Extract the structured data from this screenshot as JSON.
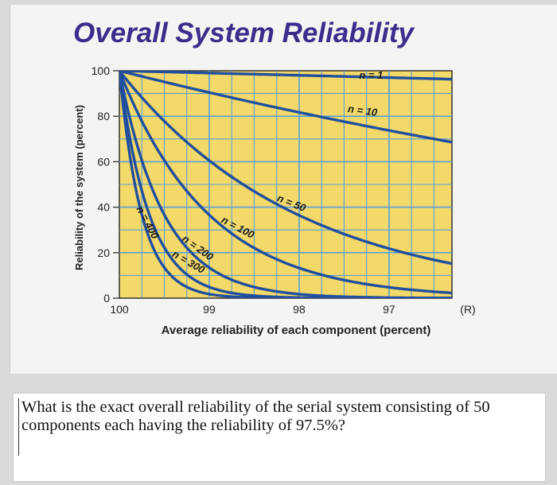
{
  "chart_data": {
    "type": "line",
    "title": "Overall System Reliability",
    "xlabel": "Average reliability of each component (percent)",
    "ylabel": "Reliability of the system (percent)",
    "x_unit_label": "(R)",
    "xlim": [
      100,
      96.3
    ],
    "ylim": [
      0,
      100
    ],
    "x_ticks": [
      "100",
      "99",
      "98",
      "97"
    ],
    "y_ticks": [
      "0",
      "20",
      "40",
      "60",
      "80",
      "100"
    ],
    "grid": true,
    "legend": "inline-labels",
    "series": [
      {
        "name": "n = 1",
        "label": "n = 1"
      },
      {
        "name": "n = 10",
        "label": "n = 10"
      },
      {
        "name": "n = 50",
        "label": "n = 50"
      },
      {
        "name": "n = 100",
        "label": "n = 100"
      },
      {
        "name": "n = 200",
        "label": "n = 200"
      },
      {
        "name": "n = 300",
        "label": "n = 300"
      },
      {
        "name": "n = 400",
        "label": "n = 400"
      }
    ],
    "colors": {
      "plot_bg": "#f3d86a",
      "grid": "#5aa0d8",
      "line": "#1f4f9e",
      "title": "#3a2d8c"
    }
  },
  "question": "What is the exact overall reliability of the serial system consisting of 50 components each having the reliability of 97.5%?"
}
